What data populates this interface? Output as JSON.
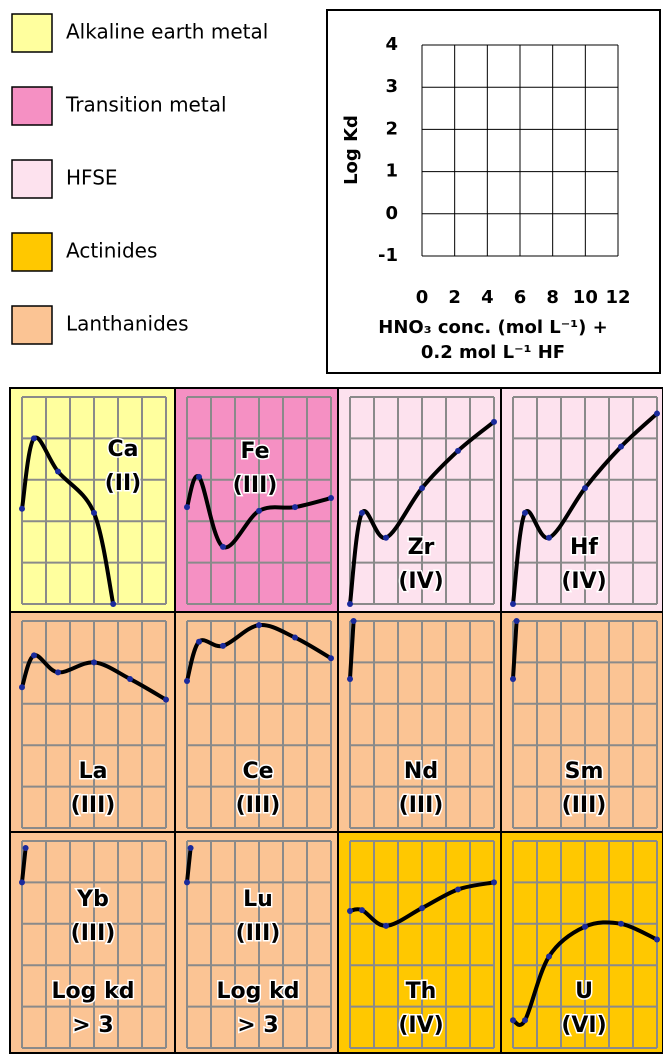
{
  "legend": [
    {
      "label": "Alkaline earth metal",
      "color": "#ffff9e"
    },
    {
      "label": "Transition metal",
      "color": "#f590c3"
    },
    {
      "label": "HFSE",
      "color": "#fde2ee"
    },
    {
      "label": "Actinides",
      "color": "#ffc800"
    },
    {
      "label": "Lanthanides",
      "color": "#fbc494"
    }
  ],
  "chart_data": [
    {
      "type": "key",
      "ylabel": "Log Kd",
      "xlabel": [
        "HNO₃ conc. (mol L⁻¹) +",
        "0.2 mol L⁻¹ HF"
      ],
      "xlim": [
        0,
        12
      ],
      "ylim": [
        -1,
        4
      ],
      "xticks": [
        0,
        2,
        4,
        6,
        8,
        10,
        12
      ],
      "yticks": [
        -1,
        0,
        1,
        2,
        3,
        4
      ],
      "grid": true
    },
    {
      "type": "line",
      "element": "Ca",
      "oxidation": "(II)",
      "group": 0,
      "x": [
        0,
        1,
        3,
        6,
        7.6
      ],
      "values": [
        1.3,
        3.0,
        2.2,
        1.2,
        -1
      ]
    },
    {
      "type": "line",
      "element": "Fe",
      "oxidation": "(III)",
      "group": 1,
      "x": [
        0,
        1,
        3,
        6,
        9,
        12
      ],
      "values": [
        1.34,
        2.07,
        0.38,
        1.25,
        1.34,
        1.56
      ]
    },
    {
      "type": "line",
      "element": "Zr",
      "oxidation": "(IV)",
      "group": 2,
      "x": [
        0,
        1,
        3,
        6,
        9,
        12
      ],
      "values": [
        -1,
        1.2,
        0.6,
        1.8,
        2.7,
        3.4
      ]
    },
    {
      "type": "line",
      "element": "Hf",
      "oxidation": "(IV)",
      "group": 2,
      "x": [
        0,
        1,
        3,
        6,
        9,
        12
      ],
      "values": [
        -1,
        1.2,
        0.6,
        1.8,
        2.8,
        3.6
      ]
    },
    {
      "type": "line",
      "element": "La",
      "oxidation": "(III)",
      "group": 4,
      "x": [
        0,
        1,
        3,
        6,
        9,
        12
      ],
      "values": [
        2.4,
        3.17,
        2.76,
        3.0,
        2.6,
        2.1
      ]
    },
    {
      "type": "line",
      "element": "Ce",
      "oxidation": "(III)",
      "group": 4,
      "x": [
        0,
        1,
        3,
        6,
        9,
        12
      ],
      "values": [
        2.55,
        3.5,
        3.4,
        3.9,
        3.6,
        3.1
      ]
    },
    {
      "type": "line",
      "element": "Nd",
      "oxidation": "(III)",
      "group": 4,
      "x": [
        0,
        0.3
      ],
      "values": [
        2.6,
        4
      ]
    },
    {
      "type": "line",
      "element": "Sm",
      "oxidation": "(III)",
      "group": 4,
      "x": [
        0,
        0.3
      ],
      "values": [
        2.6,
        4
      ]
    },
    {
      "type": "line",
      "element": "Yb",
      "oxidation": "(III)",
      "note": [
        "Log kd",
        "> 3"
      ],
      "group": 4,
      "x": [
        0,
        0.3
      ],
      "values": [
        3.0,
        3.83
      ]
    },
    {
      "type": "line",
      "element": "Lu",
      "oxidation": "(III)",
      "note": [
        "Log kd",
        "> 3"
      ],
      "group": 4,
      "x": [
        0,
        0.3
      ],
      "values": [
        3.0,
        3.83
      ]
    },
    {
      "type": "line",
      "element": "Th",
      "oxidation": "(IV)",
      "group": 3,
      "x": [
        0,
        1,
        3,
        6,
        9,
        12
      ],
      "values": [
        2.31,
        2.33,
        1.95,
        2.38,
        2.83,
        3.0
      ]
    },
    {
      "type": "line",
      "element": "U",
      "oxidation": "(VI)",
      "group": 3,
      "x": [
        0,
        1,
        3,
        6,
        9,
        12
      ],
      "values": [
        -0.33,
        -0.33,
        1.21,
        1.93,
        2.0,
        1.62
      ]
    }
  ]
}
